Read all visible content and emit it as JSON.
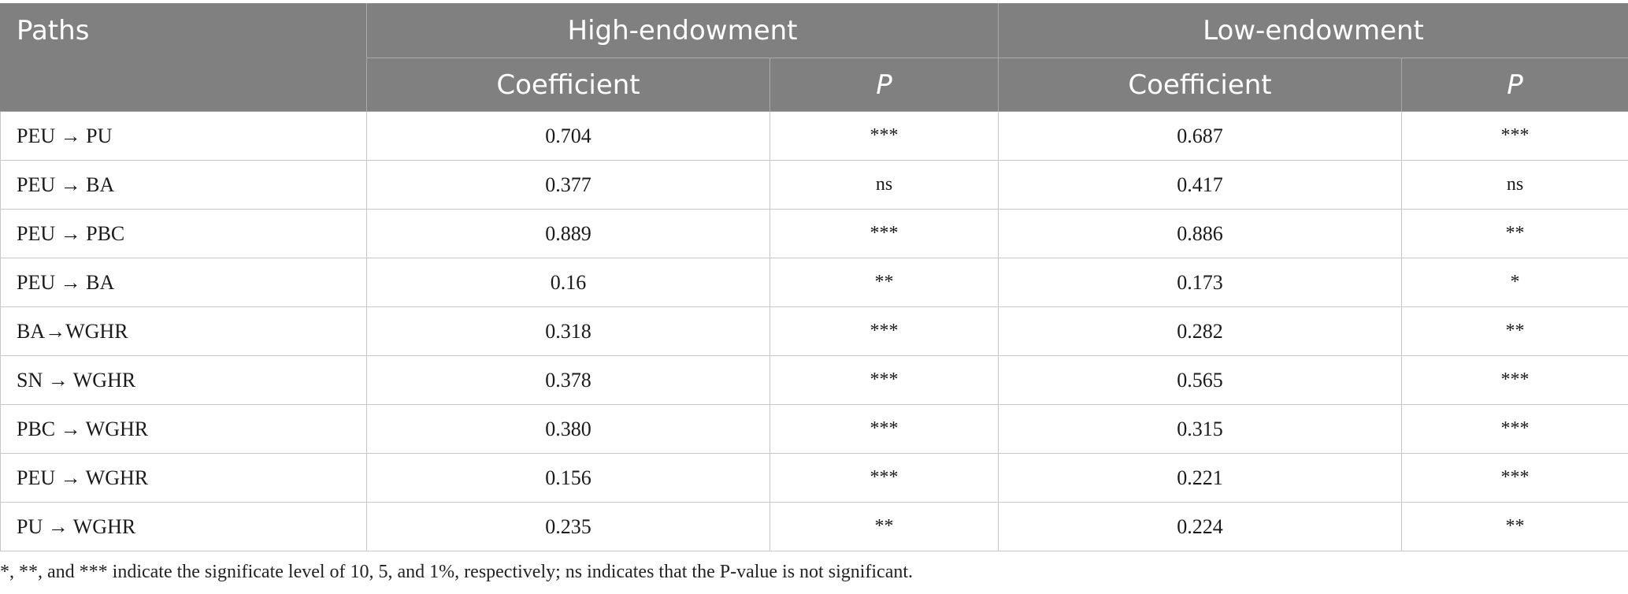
{
  "header": {
    "paths_label": "Paths",
    "groups": [
      {
        "label": "High-endowment",
        "coef_label": "Coefficient",
        "p_label": "P"
      },
      {
        "label": "Low-endowment",
        "coef_label": "Coefficient",
        "p_label": "P"
      }
    ]
  },
  "rows": [
    {
      "path": "PEU → PU",
      "high_coef": "0.704",
      "high_p": "***",
      "low_coef": "0.687",
      "low_p": "***"
    },
    {
      "path": "PEU → BA",
      "high_coef": "0.377",
      "high_p": "ns",
      "low_coef": "0.417",
      "low_p": "ns"
    },
    {
      "path": "PEU → PBC",
      "high_coef": "0.889",
      "high_p": "***",
      "low_coef": "0.886",
      "low_p": "**"
    },
    {
      "path": "PEU → BA",
      "high_coef": "0.16",
      "high_p": "**",
      "low_coef": "0.173",
      "low_p": "*"
    },
    {
      "path": "BA→WGHR",
      "high_coef": "0.318",
      "high_p": "***",
      "low_coef": "0.282",
      "low_p": "**"
    },
    {
      "path": "SN → WGHR",
      "high_coef": "0.378",
      "high_p": "***",
      "low_coef": "0.565",
      "low_p": "***"
    },
    {
      "path": "PBC → WGHR",
      "high_coef": "0.380",
      "high_p": "***",
      "low_coef": "0.315",
      "low_p": "***"
    },
    {
      "path": "PEU → WGHR",
      "high_coef": "0.156",
      "high_p": "***",
      "low_coef": "0.221",
      "low_p": "***"
    },
    {
      "path": "PU → WGHR",
      "high_coef": "0.235",
      "high_p": "**",
      "low_coef": "0.224",
      "low_p": "**"
    }
  ],
  "footnote": "*, **, and *** indicate the significate level of 10, 5, and 1%, respectively; ns indicates that the P-value is not significant."
}
